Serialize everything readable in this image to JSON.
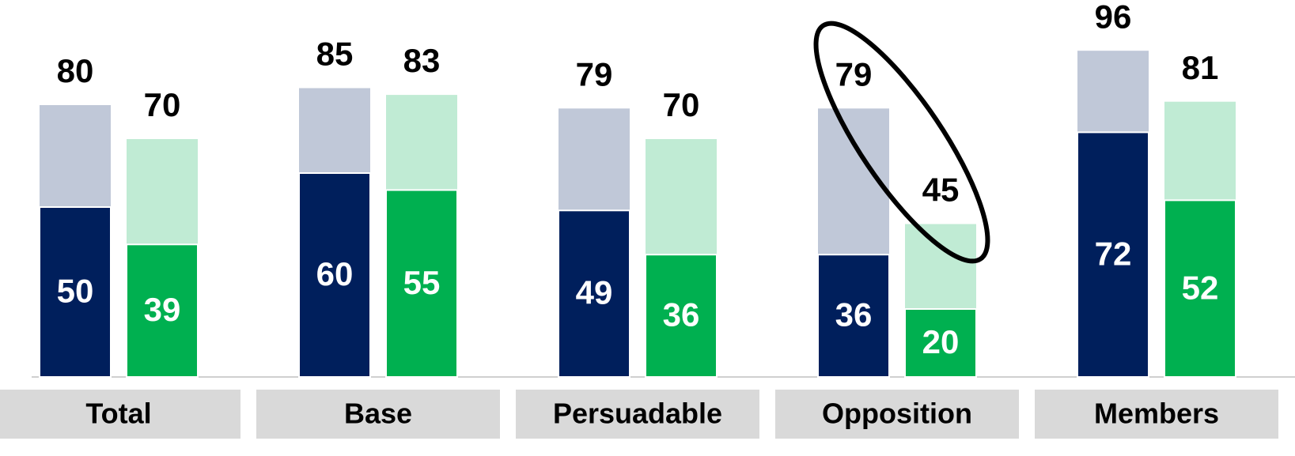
{
  "chart_data": {
    "type": "bar",
    "overlay": true,
    "categories": [
      "Total",
      "Base",
      "Persuadable",
      "Opposition",
      "Members"
    ],
    "series": [
      {
        "color": "#c0c8d8",
        "values": [
          80,
          85,
          79,
          79,
          96
        ]
      },
      {
        "color": "#001f5c",
        "values": [
          50,
          60,
          49,
          36,
          72
        ]
      },
      {
        "color": "#c0ebd4",
        "values": [
          70,
          83,
          70,
          45,
          81
        ]
      },
      {
        "color": "#00b050",
        "values": [
          39,
          55,
          36,
          20,
          52
        ]
      }
    ],
    "ylim": [
      0,
      100
    ]
  }
}
